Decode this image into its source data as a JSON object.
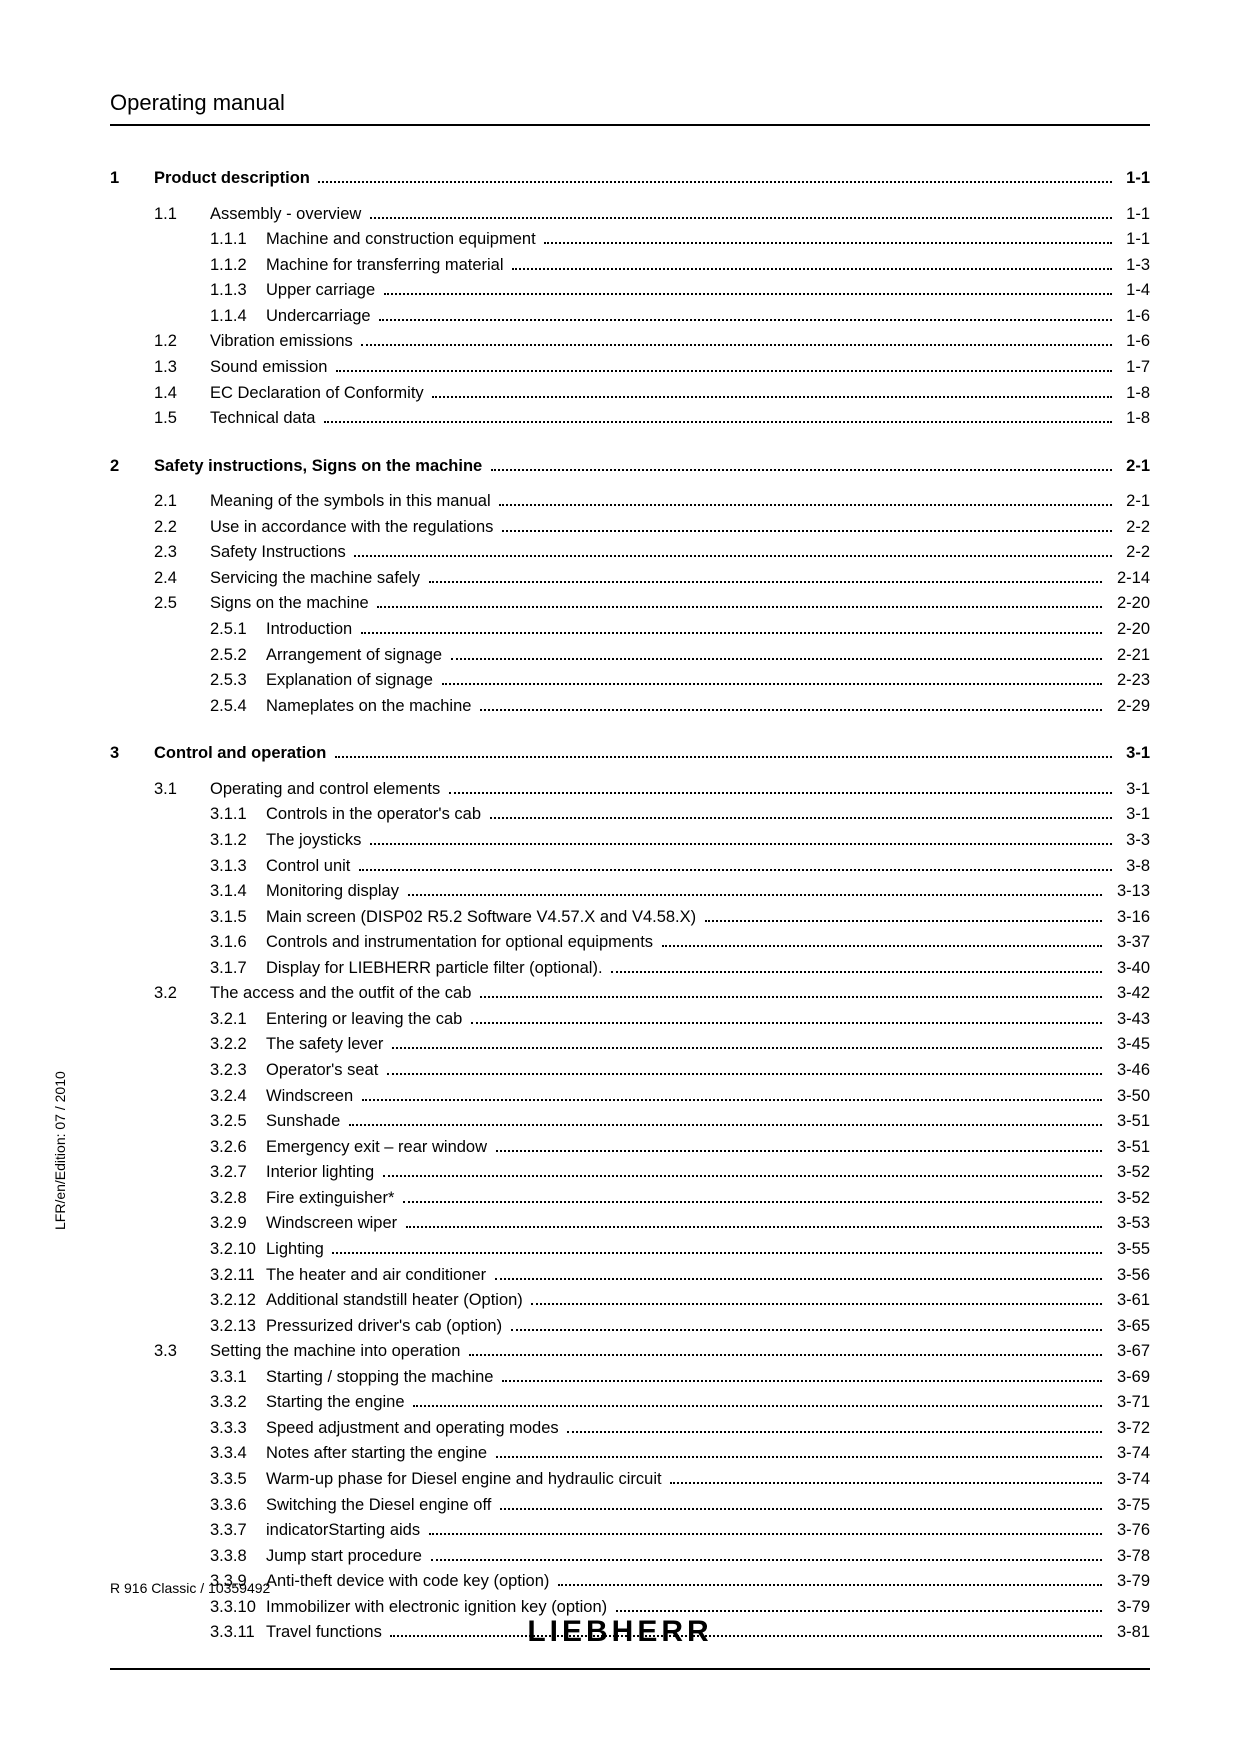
{
  "header": {
    "title": "Operating manual"
  },
  "sideText": "LFR/en/Edition: 07 / 2010",
  "footer": {
    "left": "R 916 Classic / 10359492",
    "brand": "LIEBHERR"
  },
  "toc": [
    {
      "type": "section",
      "num": "1",
      "title": "Product description",
      "page": "1-1"
    },
    {
      "type": "gap"
    },
    {
      "type": "sub",
      "num": "1.1",
      "title": "Assembly - overview",
      "page": "1-1"
    },
    {
      "type": "subsub",
      "num": "1.1.1",
      "title": "Machine and construction equipment",
      "page": "1-1"
    },
    {
      "type": "subsub",
      "num": "1.1.2",
      "title": "Machine for transferring material",
      "page": "1-3"
    },
    {
      "type": "subsub",
      "num": "1.1.3",
      "title": "Upper carriage",
      "page": "1-4"
    },
    {
      "type": "subsub",
      "num": "1.1.4",
      "title": "Undercarriage",
      "page": "1-6"
    },
    {
      "type": "sub",
      "num": "1.2",
      "title": "Vibration emissions",
      "page": "1-6"
    },
    {
      "type": "sub",
      "num": "1.3",
      "title": "Sound emission",
      "page": "1-7"
    },
    {
      "type": "sub",
      "num": "1.4",
      "title": "EC Declaration of Conformity",
      "page": "1-8"
    },
    {
      "type": "sub",
      "num": "1.5",
      "title": "Technical data",
      "page": "1-8"
    },
    {
      "type": "section-gap"
    },
    {
      "type": "section",
      "num": "2",
      "title": "Safety instructions, Signs on the machine",
      "page": "2-1"
    },
    {
      "type": "gap"
    },
    {
      "type": "sub",
      "num": "2.1",
      "title": "Meaning of the symbols in this manual",
      "page": "2-1"
    },
    {
      "type": "sub",
      "num": "2.2",
      "title": "Use in accordance with the regulations",
      "page": "2-2"
    },
    {
      "type": "sub",
      "num": "2.3",
      "title": "Safety Instructions",
      "page": "2-2"
    },
    {
      "type": "sub",
      "num": "2.4",
      "title": "Servicing the machine safely",
      "page": "2-14"
    },
    {
      "type": "sub",
      "num": "2.5",
      "title": "Signs on the machine",
      "page": "2-20"
    },
    {
      "type": "subsub",
      "num": "2.5.1",
      "title": "Introduction",
      "page": "2-20"
    },
    {
      "type": "subsub",
      "num": "2.5.2",
      "title": "Arrangement of signage",
      "page": "2-21"
    },
    {
      "type": "subsub",
      "num": "2.5.3",
      "title": "Explanation of signage",
      "page": "2-23"
    },
    {
      "type": "subsub",
      "num": "2.5.4",
      "title": "Nameplates on the machine",
      "page": "2-29"
    },
    {
      "type": "section-gap"
    },
    {
      "type": "section",
      "num": "3",
      "title": "Control and operation",
      "page": "3-1"
    },
    {
      "type": "gap"
    },
    {
      "type": "sub",
      "num": "3.1",
      "title": "Operating and control elements",
      "page": "3-1"
    },
    {
      "type": "subsub",
      "num": "3.1.1",
      "title": "Controls in the operator's cab",
      "page": "3-1"
    },
    {
      "type": "subsub",
      "num": "3.1.2",
      "title": "The joysticks",
      "page": "3-3"
    },
    {
      "type": "subsub",
      "num": "3.1.3",
      "title": "Control unit",
      "page": "3-8"
    },
    {
      "type": "subsub",
      "num": "3.1.4",
      "title": "Monitoring display",
      "page": "3-13"
    },
    {
      "type": "subsub",
      "num": "3.1.5",
      "title": "Main screen (DISP02 R5.2 Software V4.57.X and V4.58.X)",
      "page": "3-16"
    },
    {
      "type": "subsub",
      "num": "3.1.6",
      "title": "Controls and instrumentation for optional equipments",
      "page": "3-37"
    },
    {
      "type": "subsub",
      "num": "3.1.7",
      "title": "Display for LIEBHERR particle filter (optional).",
      "page": "3-40"
    },
    {
      "type": "sub",
      "num": "3.2",
      "title": "The access and the outfit of the cab",
      "page": "3-42"
    },
    {
      "type": "subsub",
      "num": "3.2.1",
      "title": "Entering or leaving the cab",
      "page": "3-43"
    },
    {
      "type": "subsub",
      "num": "3.2.2",
      "title": "The safety lever",
      "page": "3-45"
    },
    {
      "type": "subsub",
      "num": "3.2.3",
      "title": "Operator's seat",
      "page": "3-46"
    },
    {
      "type": "subsub",
      "num": "3.2.4",
      "title": "Windscreen",
      "page": "3-50"
    },
    {
      "type": "subsub",
      "num": "3.2.5",
      "title": "Sunshade",
      "page": "3-51"
    },
    {
      "type": "subsub",
      "num": "3.2.6",
      "title": "Emergency exit – rear window",
      "page": "3-51"
    },
    {
      "type": "subsub",
      "num": "3.2.7",
      "title": "Interior lighting",
      "page": "3-52"
    },
    {
      "type": "subsub",
      "num": "3.2.8",
      "title": "Fire extinguisher*",
      "page": "3-52"
    },
    {
      "type": "subsub",
      "num": "3.2.9",
      "title": "Windscreen wiper",
      "page": "3-53"
    },
    {
      "type": "subsub",
      "num": "3.2.10",
      "title": "Lighting",
      "page": "3-55"
    },
    {
      "type": "subsub",
      "num": "3.2.11",
      "title": "The heater and air conditioner",
      "page": "3-56"
    },
    {
      "type": "subsub",
      "num": "3.2.12",
      "title": "Additional standstill heater (Option)",
      "page": "3-61"
    },
    {
      "type": "subsub",
      "num": "3.2.13",
      "title": "Pressurized driver's cab (option)",
      "page": "3-65"
    },
    {
      "type": "sub",
      "num": "3.3",
      "title": "Setting the machine into operation",
      "page": "3-67"
    },
    {
      "type": "subsub",
      "num": "3.3.1",
      "title": "Starting / stopping the machine",
      "page": "3-69"
    },
    {
      "type": "subsub",
      "num": "3.3.2",
      "title": "Starting the engine",
      "page": "3-71"
    },
    {
      "type": "subsub",
      "num": "3.3.3",
      "title": "Speed adjustment and operating modes",
      "page": "3-72"
    },
    {
      "type": "subsub",
      "num": "3.3.4",
      "title": "Notes after starting the engine",
      "page": "3-74"
    },
    {
      "type": "subsub",
      "num": "3.3.5",
      "title": "Warm-up phase for Diesel engine and hydraulic circuit",
      "page": "3-74"
    },
    {
      "type": "subsub",
      "num": "3.3.6",
      "title": "Switching the Diesel engine off",
      "page": "3-75"
    },
    {
      "type": "subsub",
      "num": "3.3.7",
      "title": "indicatorStarting aids",
      "page": "3-76"
    },
    {
      "type": "subsub",
      "num": "3.3.8",
      "title": "Jump start procedure",
      "page": "3-78"
    },
    {
      "type": "subsub",
      "num": "3.3.9",
      "title": "Anti-theft device with code key (option)",
      "page": "3-79"
    },
    {
      "type": "subsub",
      "num": "3.3.10",
      "title": "Immobilizer with electronic ignition key (option)",
      "page": "3-79"
    },
    {
      "type": "subsub",
      "num": "3.3.11",
      "title": "Travel functions",
      "page": "3-81"
    }
  ]
}
